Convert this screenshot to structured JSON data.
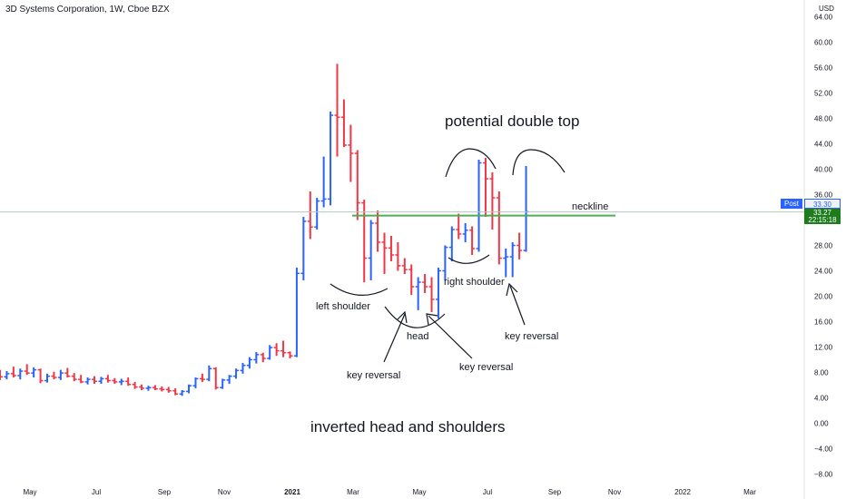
{
  "header": {
    "title": "3D Systems Corporation, 1W, Cboe BZX",
    "currency": "USD"
  },
  "price_labels": {
    "post_tag": "Post",
    "post_value": "33.30",
    "last_value": "33.27",
    "countdown": "22:15:18"
  },
  "annotations": {
    "neckline": "neckline",
    "potential": "potential double top",
    "left_shoulder": "left shoulder",
    "head": "head",
    "right_shoulder": "right shoulder",
    "key_reversal_1": "key reversal",
    "key_reversal_2": "key reversal",
    "key_reversal_3": "key reversal",
    "pattern": "inverted head and shoulders"
  },
  "colors": {
    "up": "#2962ff",
    "down": "#f23645",
    "neckline": "#4caf50",
    "last_line": "#b2c9c3"
  },
  "chart_data": {
    "type": "ohlc",
    "title": "3D Systems Corporation, 1W, Cboe BZX",
    "ylim": [
      -8,
      64
    ],
    "y_ticks": [
      "64.00",
      "60.00",
      "56.00",
      "52.00",
      "48.00",
      "44.00",
      "40.00",
      "36.00",
      "32.00",
      "28.00",
      "24.00",
      "20.00",
      "16.00",
      "12.00",
      "8.00",
      "4.00",
      "0.00",
      "−4.00",
      "−8.00"
    ],
    "x_ticks": [
      "May",
      "Jul",
      "Sep",
      "Nov",
      "2021",
      "Mar",
      "May",
      "Jul",
      "Sep",
      "Nov",
      "2022",
      "Mar"
    ],
    "neckline_level": 32.7,
    "last_price": 33.27,
    "post_price": 33.3,
    "bars": [
      {
        "o": 7.6,
        "h": 8.4,
        "l": 6.8,
        "c": 7.3
      },
      {
        "o": 7.3,
        "h": 8.2,
        "l": 6.9,
        "c": 7.8
      },
      {
        "o": 7.8,
        "h": 8.9,
        "l": 7.2,
        "c": 7.5
      },
      {
        "o": 7.5,
        "h": 8.6,
        "l": 6.9,
        "c": 8.2
      },
      {
        "o": 8.2,
        "h": 9.3,
        "l": 7.6,
        "c": 7.9
      },
      {
        "o": 7.9,
        "h": 8.8,
        "l": 7.2,
        "c": 8.4
      },
      {
        "o": 8.4,
        "h": 8.6,
        "l": 6.3,
        "c": 6.7
      },
      {
        "o": 6.7,
        "h": 7.8,
        "l": 6.4,
        "c": 7.4
      },
      {
        "o": 7.4,
        "h": 8.1,
        "l": 6.9,
        "c": 7.2
      },
      {
        "o": 7.2,
        "h": 8.4,
        "l": 6.8,
        "c": 7.9
      },
      {
        "o": 7.9,
        "h": 8.7,
        "l": 7.2,
        "c": 7.4
      },
      {
        "o": 7.4,
        "h": 7.9,
        "l": 6.6,
        "c": 6.9
      },
      {
        "o": 6.9,
        "h": 7.6,
        "l": 6.3,
        "c": 6.5
      },
      {
        "o": 6.5,
        "h": 7.2,
        "l": 6.1,
        "c": 6.9
      },
      {
        "o": 6.9,
        "h": 7.4,
        "l": 6.2,
        "c": 6.6
      },
      {
        "o": 6.6,
        "h": 7.3,
        "l": 6.2,
        "c": 7.0
      },
      {
        "o": 7.0,
        "h": 7.6,
        "l": 6.4,
        "c": 6.7
      },
      {
        "o": 6.7,
        "h": 7.1,
        "l": 6.2,
        "c": 6.5
      },
      {
        "o": 6.5,
        "h": 7.0,
        "l": 6.0,
        "c": 6.6
      },
      {
        "o": 6.6,
        "h": 7.2,
        "l": 5.9,
        "c": 6.1
      },
      {
        "o": 6.1,
        "h": 6.5,
        "l": 5.4,
        "c": 5.7
      },
      {
        "o": 5.7,
        "h": 6.1,
        "l": 5.2,
        "c": 5.5
      },
      {
        "o": 5.5,
        "h": 5.9,
        "l": 5.1,
        "c": 5.6
      },
      {
        "o": 5.6,
        "h": 6.0,
        "l": 5.2,
        "c": 5.4
      },
      {
        "o": 5.4,
        "h": 5.8,
        "l": 5.0,
        "c": 5.3
      },
      {
        "o": 5.3,
        "h": 5.7,
        "l": 4.8,
        "c": 5.1
      },
      {
        "o": 5.1,
        "h": 5.5,
        "l": 4.4,
        "c": 4.6
      },
      {
        "o": 4.6,
        "h": 5.2,
        "l": 4.3,
        "c": 5.0
      },
      {
        "o": 5.0,
        "h": 6.1,
        "l": 4.7,
        "c": 5.9
      },
      {
        "o": 5.9,
        "h": 7.2,
        "l": 5.5,
        "c": 7.0
      },
      {
        "o": 7.0,
        "h": 7.8,
        "l": 6.5,
        "c": 6.9
      },
      {
        "o": 6.9,
        "h": 9.1,
        "l": 6.6,
        "c": 8.6
      },
      {
        "o": 8.6,
        "h": 8.8,
        "l": 5.3,
        "c": 5.6
      },
      {
        "o": 5.6,
        "h": 7.0,
        "l": 5.4,
        "c": 6.8
      },
      {
        "o": 6.8,
        "h": 7.6,
        "l": 6.2,
        "c": 7.4
      },
      {
        "o": 7.4,
        "h": 8.6,
        "l": 7.0,
        "c": 8.3
      },
      {
        "o": 8.3,
        "h": 9.5,
        "l": 7.8,
        "c": 9.1
      },
      {
        "o": 9.1,
        "h": 10.4,
        "l": 8.6,
        "c": 10.0
      },
      {
        "o": 10.0,
        "h": 11.2,
        "l": 9.4,
        "c": 10.8
      },
      {
        "o": 10.8,
        "h": 11.1,
        "l": 9.6,
        "c": 10.2
      },
      {
        "o": 10.2,
        "h": 12.3,
        "l": 10.0,
        "c": 11.9
      },
      {
        "o": 11.9,
        "h": 12.6,
        "l": 10.6,
        "c": 11.4
      },
      {
        "o": 11.4,
        "h": 13.0,
        "l": 10.4,
        "c": 11.1
      },
      {
        "o": 11.1,
        "h": 11.3,
        "l": 10.2,
        "c": 10.6
      },
      {
        "o": 10.6,
        "h": 24.5,
        "l": 10.4,
        "c": 23.6
      },
      {
        "o": 23.6,
        "h": 32.5,
        "l": 22.5,
        "c": 31.8
      },
      {
        "o": 31.8,
        "h": 36.5,
        "l": 29.0,
        "c": 30.9
      },
      {
        "o": 30.9,
        "h": 35.5,
        "l": 30.5,
        "c": 35.0
      },
      {
        "o": 35.0,
        "h": 42.0,
        "l": 34.0,
        "c": 35.3
      },
      {
        "o": 35.3,
        "h": 49.1,
        "l": 34.3,
        "c": 48.5
      },
      {
        "o": 48.5,
        "h": 56.6,
        "l": 42.0,
        "c": 48.2
      },
      {
        "o": 48.2,
        "h": 51.0,
        "l": 43.5,
        "c": 43.8
      },
      {
        "o": 43.8,
        "h": 47.0,
        "l": 38.0,
        "c": 42.5
      },
      {
        "o": 42.5,
        "h": 43.0,
        "l": 32.0,
        "c": 34.7
      },
      {
        "o": 34.7,
        "h": 35.2,
        "l": 22.2,
        "c": 26.0
      },
      {
        "o": 26.0,
        "h": 32.0,
        "l": 22.5,
        "c": 31.5
      },
      {
        "o": 31.5,
        "h": 33.5,
        "l": 27.0,
        "c": 28.5
      },
      {
        "o": 28.5,
        "h": 30.0,
        "l": 23.5,
        "c": 27.6
      },
      {
        "o": 27.6,
        "h": 29.5,
        "l": 25.5,
        "c": 26.5
      },
      {
        "o": 26.5,
        "h": 28.5,
        "l": 24.0,
        "c": 24.8
      },
      {
        "o": 24.8,
        "h": 26.0,
        "l": 23.5,
        "c": 24.2
      },
      {
        "o": 24.2,
        "h": 25.0,
        "l": 20.2,
        "c": 21.5
      },
      {
        "o": 21.5,
        "h": 23.0,
        "l": 17.8,
        "c": 22.2
      },
      {
        "o": 22.2,
        "h": 23.5,
        "l": 20.5,
        "c": 21.5
      },
      {
        "o": 21.5,
        "h": 23.0,
        "l": 17.5,
        "c": 19.5
      },
      {
        "o": 19.5,
        "h": 24.5,
        "l": 16.5,
        "c": 24.0
      },
      {
        "o": 24.0,
        "h": 28.0,
        "l": 22.5,
        "c": 27.7
      },
      {
        "o": 27.7,
        "h": 31.0,
        "l": 25.5,
        "c": 30.5
      },
      {
        "o": 30.5,
        "h": 33.0,
        "l": 29.0,
        "c": 29.8
      },
      {
        "o": 29.8,
        "h": 31.5,
        "l": 28.5,
        "c": 30.4
      },
      {
        "o": 30.4,
        "h": 31.0,
        "l": 26.5,
        "c": 27.5
      },
      {
        "o": 27.5,
        "h": 41.5,
        "l": 27.0,
        "c": 41.0
      },
      {
        "o": 41.0,
        "h": 41.8,
        "l": 32.5,
        "c": 38.5
      },
      {
        "o": 38.5,
        "h": 39.5,
        "l": 30.5,
        "c": 35.5
      },
      {
        "o": 35.5,
        "h": 36.5,
        "l": 25.0,
        "c": 26.0
      },
      {
        "o": 26.0,
        "h": 27.5,
        "l": 23.0,
        "c": 26.2
      },
      {
        "o": 26.2,
        "h": 28.5,
        "l": 23.0,
        "c": 28.0
      },
      {
        "o": 28.0,
        "h": 30.0,
        "l": 25.8,
        "c": 27.2
      },
      {
        "o": 27.2,
        "h": 40.5,
        "l": 27.0,
        "c": 33.3
      }
    ]
  }
}
